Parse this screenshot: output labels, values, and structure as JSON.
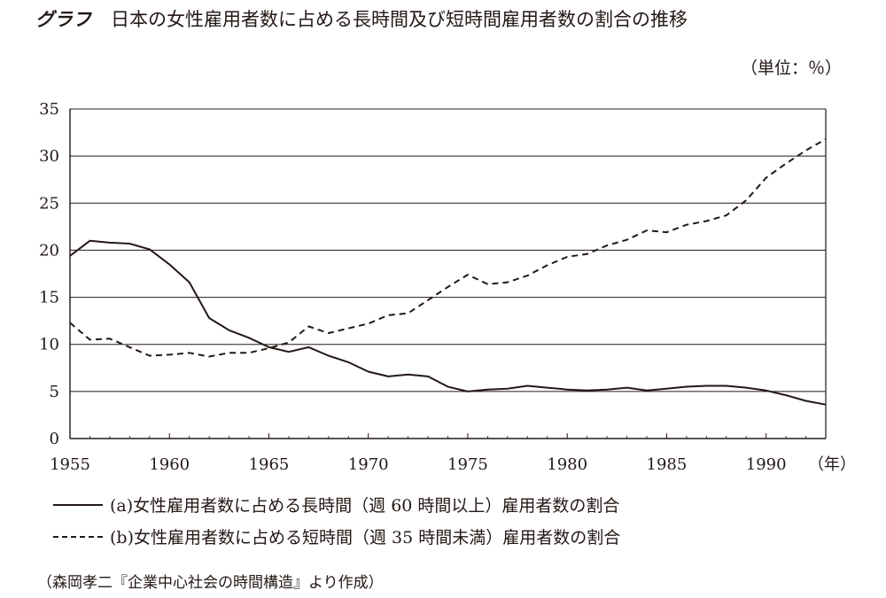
{
  "header": {
    "lead": "グラフ",
    "title": "日本の女性雇用者数に占める長時間及び短時間雇用者数の割合の推移",
    "unit": "（単位：％）"
  },
  "chart_data": {
    "type": "line",
    "title": "日本の女性雇用者数に占める長時間及び短時間雇用者数の割合の推移",
    "ylabel": "（単位：％）",
    "xlabel": "（年）",
    "xlim": [
      1955,
      1993
    ],
    "ylim": [
      0,
      35
    ],
    "x_ticks": [
      1955,
      1960,
      1965,
      1970,
      1975,
      1980,
      1985,
      1990
    ],
    "y_ticks": [
      0,
      5,
      10,
      15,
      20,
      25,
      30,
      35
    ],
    "grid": "horizontal",
    "x": [
      1955,
      1956,
      1957,
      1958,
      1959,
      1960,
      1961,
      1962,
      1963,
      1964,
      1965,
      1966,
      1967,
      1968,
      1969,
      1970,
      1971,
      1972,
      1973,
      1974,
      1975,
      1976,
      1977,
      1978,
      1979,
      1980,
      1981,
      1982,
      1983,
      1984,
      1985,
      1986,
      1987,
      1988,
      1989,
      1990,
      1991,
      1992,
      1993
    ],
    "series": [
      {
        "name": "(a)女性雇用者数に占める長時間（週 60 時間以上）雇用者数の割合",
        "style": "solid",
        "values": [
          19.4,
          21.0,
          20.8,
          20.7,
          20.1,
          18.5,
          16.6,
          12.8,
          11.5,
          10.7,
          9.7,
          9.2,
          9.7,
          8.8,
          8.1,
          7.1,
          6.6,
          6.8,
          6.6,
          5.5,
          5.0,
          5.2,
          5.3,
          5.6,
          5.4,
          5.2,
          5.1,
          5.2,
          5.4,
          5.1,
          5.3,
          5.5,
          5.6,
          5.6,
          5.4,
          5.1,
          4.6,
          4.0,
          3.6
        ]
      },
      {
        "name": "(b)女性雇用者数に占める短時間（週 35 時間未満）雇用者数の割合",
        "style": "dashed",
        "values": [
          12.3,
          10.5,
          10.6,
          9.7,
          8.8,
          8.9,
          9.1,
          8.7,
          9.1,
          9.1,
          9.6,
          10.2,
          11.9,
          11.2,
          11.7,
          12.2,
          13.1,
          13.3,
          14.7,
          16.1,
          17.4,
          16.4,
          16.6,
          17.3,
          18.4,
          19.3,
          19.6,
          20.5,
          21.1,
          22.1,
          21.9,
          22.7,
          23.1,
          23.7,
          25.3,
          27.7,
          29.2,
          30.6,
          31.8
        ]
      }
    ]
  },
  "legend": {
    "a": "(a)女性雇用者数に占める長時間（週 60 時間以上）雇用者数の割合",
    "b": "(b)女性雇用者数に占める短時間（週 35 時間未満）雇用者数の割合"
  },
  "source": "（森岡孝二『企業中心社会の時間構造』より作成）"
}
